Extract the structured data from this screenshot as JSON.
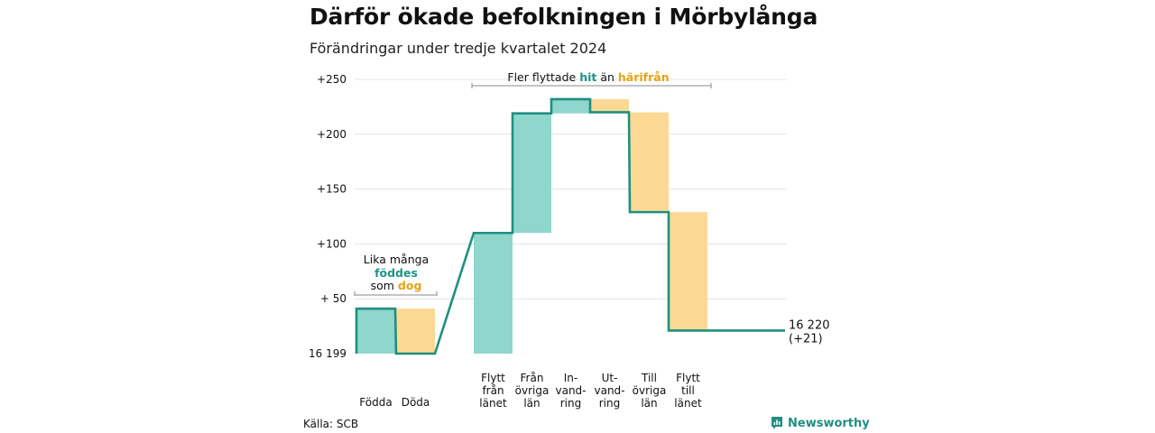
{
  "title": "Därför ökade befolkningen i Mörbylånga",
  "subtitle": "Förändringar under tredje kvartalet 2024",
  "source": "Källa: SCB",
  "brand": {
    "name": "Newsworthy",
    "icon": "newsworthy-logo-icon"
  },
  "colors": {
    "increase_fill": "#8fd6cc",
    "decrease_fill": "#fbd994",
    "step_line": "#1f8f80",
    "hit_text": "#1f9488",
    "harifran_text": "#e6a313",
    "grid": "#e3e3e3",
    "bracket": "#888888"
  },
  "chart_data": {
    "type": "waterfall",
    "title": "Därför ökade befolkningen i Mörbylånga",
    "subtitle": "Förändringar under tredje kvartalet 2024",
    "base_value": 16199,
    "base_label": "16 199",
    "end_value": 16220,
    "end_label": "16 220",
    "end_change_label": "(+21)",
    "ylim": [
      0,
      250
    ],
    "yticks": [
      {
        "value": 0,
        "label": "16 199"
      },
      {
        "value": 50,
        "label": "+ 50"
      },
      {
        "value": 100,
        "label": "+100"
      },
      {
        "value": 150,
        "label": "+150"
      },
      {
        "value": 200,
        "label": "+200"
      },
      {
        "value": 250,
        "label": "+250"
      }
    ],
    "grid": true,
    "steps": [
      {
        "name": "Födda",
        "label": [
          "Födda"
        ],
        "change": 41,
        "start": 0,
        "end": 41,
        "kind": "increase"
      },
      {
        "name": "Döda",
        "label": [
          "Döda"
        ],
        "change": -41,
        "start": 41,
        "end": 0,
        "kind": "decrease"
      },
      {
        "name": "Flytt från länet",
        "label": [
          "Flytt",
          "från",
          "länet"
        ],
        "change": 110,
        "start": 0,
        "end": 110,
        "kind": "increase"
      },
      {
        "name": "Från övriga län",
        "label": [
          "Från",
          "övriga",
          "län"
        ],
        "change": 109,
        "start": 110,
        "end": 219,
        "kind": "increase"
      },
      {
        "name": "Invandring",
        "label": [
          "In-",
          "vand-",
          "ring"
        ],
        "change": 13,
        "start": 219,
        "end": 232,
        "kind": "increase"
      },
      {
        "name": "Utvandring",
        "label": [
          "Ut-",
          "vand-",
          "ring"
        ],
        "change": -12,
        "start": 232,
        "end": 220,
        "kind": "decrease"
      },
      {
        "name": "Till övriga län",
        "label": [
          "Till",
          "övriga",
          "län"
        ],
        "change": -91,
        "start": 220,
        "end": 129,
        "kind": "decrease"
      },
      {
        "name": "Flytt till länet",
        "label": [
          "Flytt",
          "till",
          "länet"
        ],
        "change": -108,
        "start": 129,
        "end": 21,
        "kind": "decrease"
      }
    ],
    "annotations": {
      "births_deaths": {
        "lines": [
          [
            {
              "text": "Lika många",
              "style": "plain"
            }
          ],
          [
            {
              "text": "föddes",
              "style": "increase"
            }
          ],
          [
            {
              "text": "som ",
              "style": "plain"
            },
            {
              "text": "dog",
              "style": "decrease"
            }
          ]
        ]
      },
      "migration": {
        "parts": [
          {
            "text": "Fler flyttade ",
            "style": "plain"
          },
          {
            "text": "hit",
            "style": "increase"
          },
          {
            "text": " än ",
            "style": "plain"
          },
          {
            "text": "härifrån",
            "style": "decrease"
          }
        ]
      }
    }
  }
}
